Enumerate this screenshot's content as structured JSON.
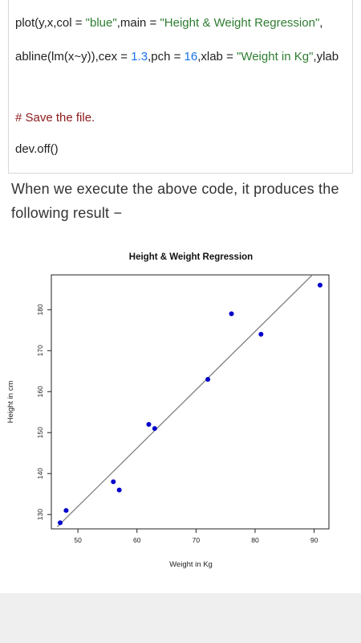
{
  "code": {
    "line1_pre": "plot(y,x,col = ",
    "line1_str1": "\"blue\"",
    "line1_mid": ",main = ",
    "line1_str2": "\"Height & Weight Regression\"",
    "line1_end": ",",
    "line2_pre": "abline(lm(x~y)),cex = ",
    "line2_num1": "1.3",
    "line2_mid1": ",pch = ",
    "line2_num2": "16",
    "line2_mid2": ",xlab = ",
    "line2_str": "\"Weight in Kg\"",
    "line2_end": ",ylab",
    "comment": "# Save the file.",
    "line4": "dev.off()"
  },
  "paragraph": "When we execute the above code, it produces the following result −",
  "chart_data": {
    "type": "scatter",
    "title": "Height & Weight Regression",
    "xlabel": "Weight in Kg",
    "ylabel": "Height in cm",
    "x_ticks": [
      50,
      60,
      70,
      80,
      90
    ],
    "y_ticks": [
      130,
      140,
      150,
      160,
      170,
      180
    ],
    "xlim": [
      45.5,
      92.5
    ],
    "ylim": [
      126.5,
      188.5
    ],
    "point_color": "#0000cc",
    "line_color": "#808080",
    "points": [
      {
        "x": 47,
        "y": 128
      },
      {
        "x": 48,
        "y": 131
      },
      {
        "x": 56,
        "y": 138
      },
      {
        "x": 57,
        "y": 136
      },
      {
        "x": 62,
        "y": 152
      },
      {
        "x": 63,
        "y": 151
      },
      {
        "x": 72,
        "y": 163
      },
      {
        "x": 76,
        "y": 179
      },
      {
        "x": 81,
        "y": 174
      },
      {
        "x": 91,
        "y": 186
      }
    ],
    "regression_line": {
      "x1": 46.5,
      "y1": 127.0,
      "x2": 89.7,
      "y2": 188.5
    }
  }
}
